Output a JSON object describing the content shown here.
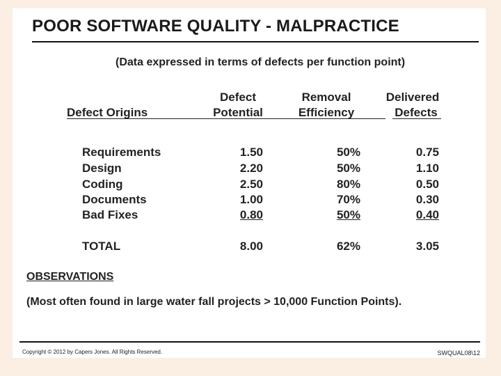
{
  "title": "POOR SOFTWARE QUALITY - MALPRACTICE",
  "subtitle": "(Data expressed in terms of defects per function point)",
  "headers": {
    "origins": "Defect Origins",
    "potential_line1": "Defect",
    "potential_line2": "Potential",
    "efficiency_line1": "Removal",
    "efficiency_line2": "Efficiency",
    "delivered_line1": "Delivered",
    "delivered_line2": "Defects"
  },
  "rows": [
    {
      "origin": "Requirements",
      "potential": "1.50",
      "efficiency": "50%",
      "delivered": "0.75"
    },
    {
      "origin": "Design",
      "potential": "2.20",
      "efficiency": "50%",
      "delivered": "1.10"
    },
    {
      "origin": "Coding",
      "potential": "2.50",
      "efficiency": "80%",
      "delivered": "0.50"
    },
    {
      "origin": "Documents",
      "potential": "1.00",
      "efficiency": "70%",
      "delivered": "0.30"
    },
    {
      "origin": "Bad Fixes",
      "potential": "0.80",
      "efficiency": "50%",
      "delivered": "0.40"
    }
  ],
  "total": {
    "origin": "TOTAL",
    "potential": "8.00",
    "efficiency": "62%",
    "delivered": "3.05"
  },
  "observations": {
    "title": "OBSERVATIONS",
    "text": "(Most often found in large water fall  projects > 10,000  Function Points)."
  },
  "footer": {
    "copyright": "Copyright © 2012 by Capers Jones.  All Rights Reserved.",
    "code": "SWQUAL08\\12"
  }
}
